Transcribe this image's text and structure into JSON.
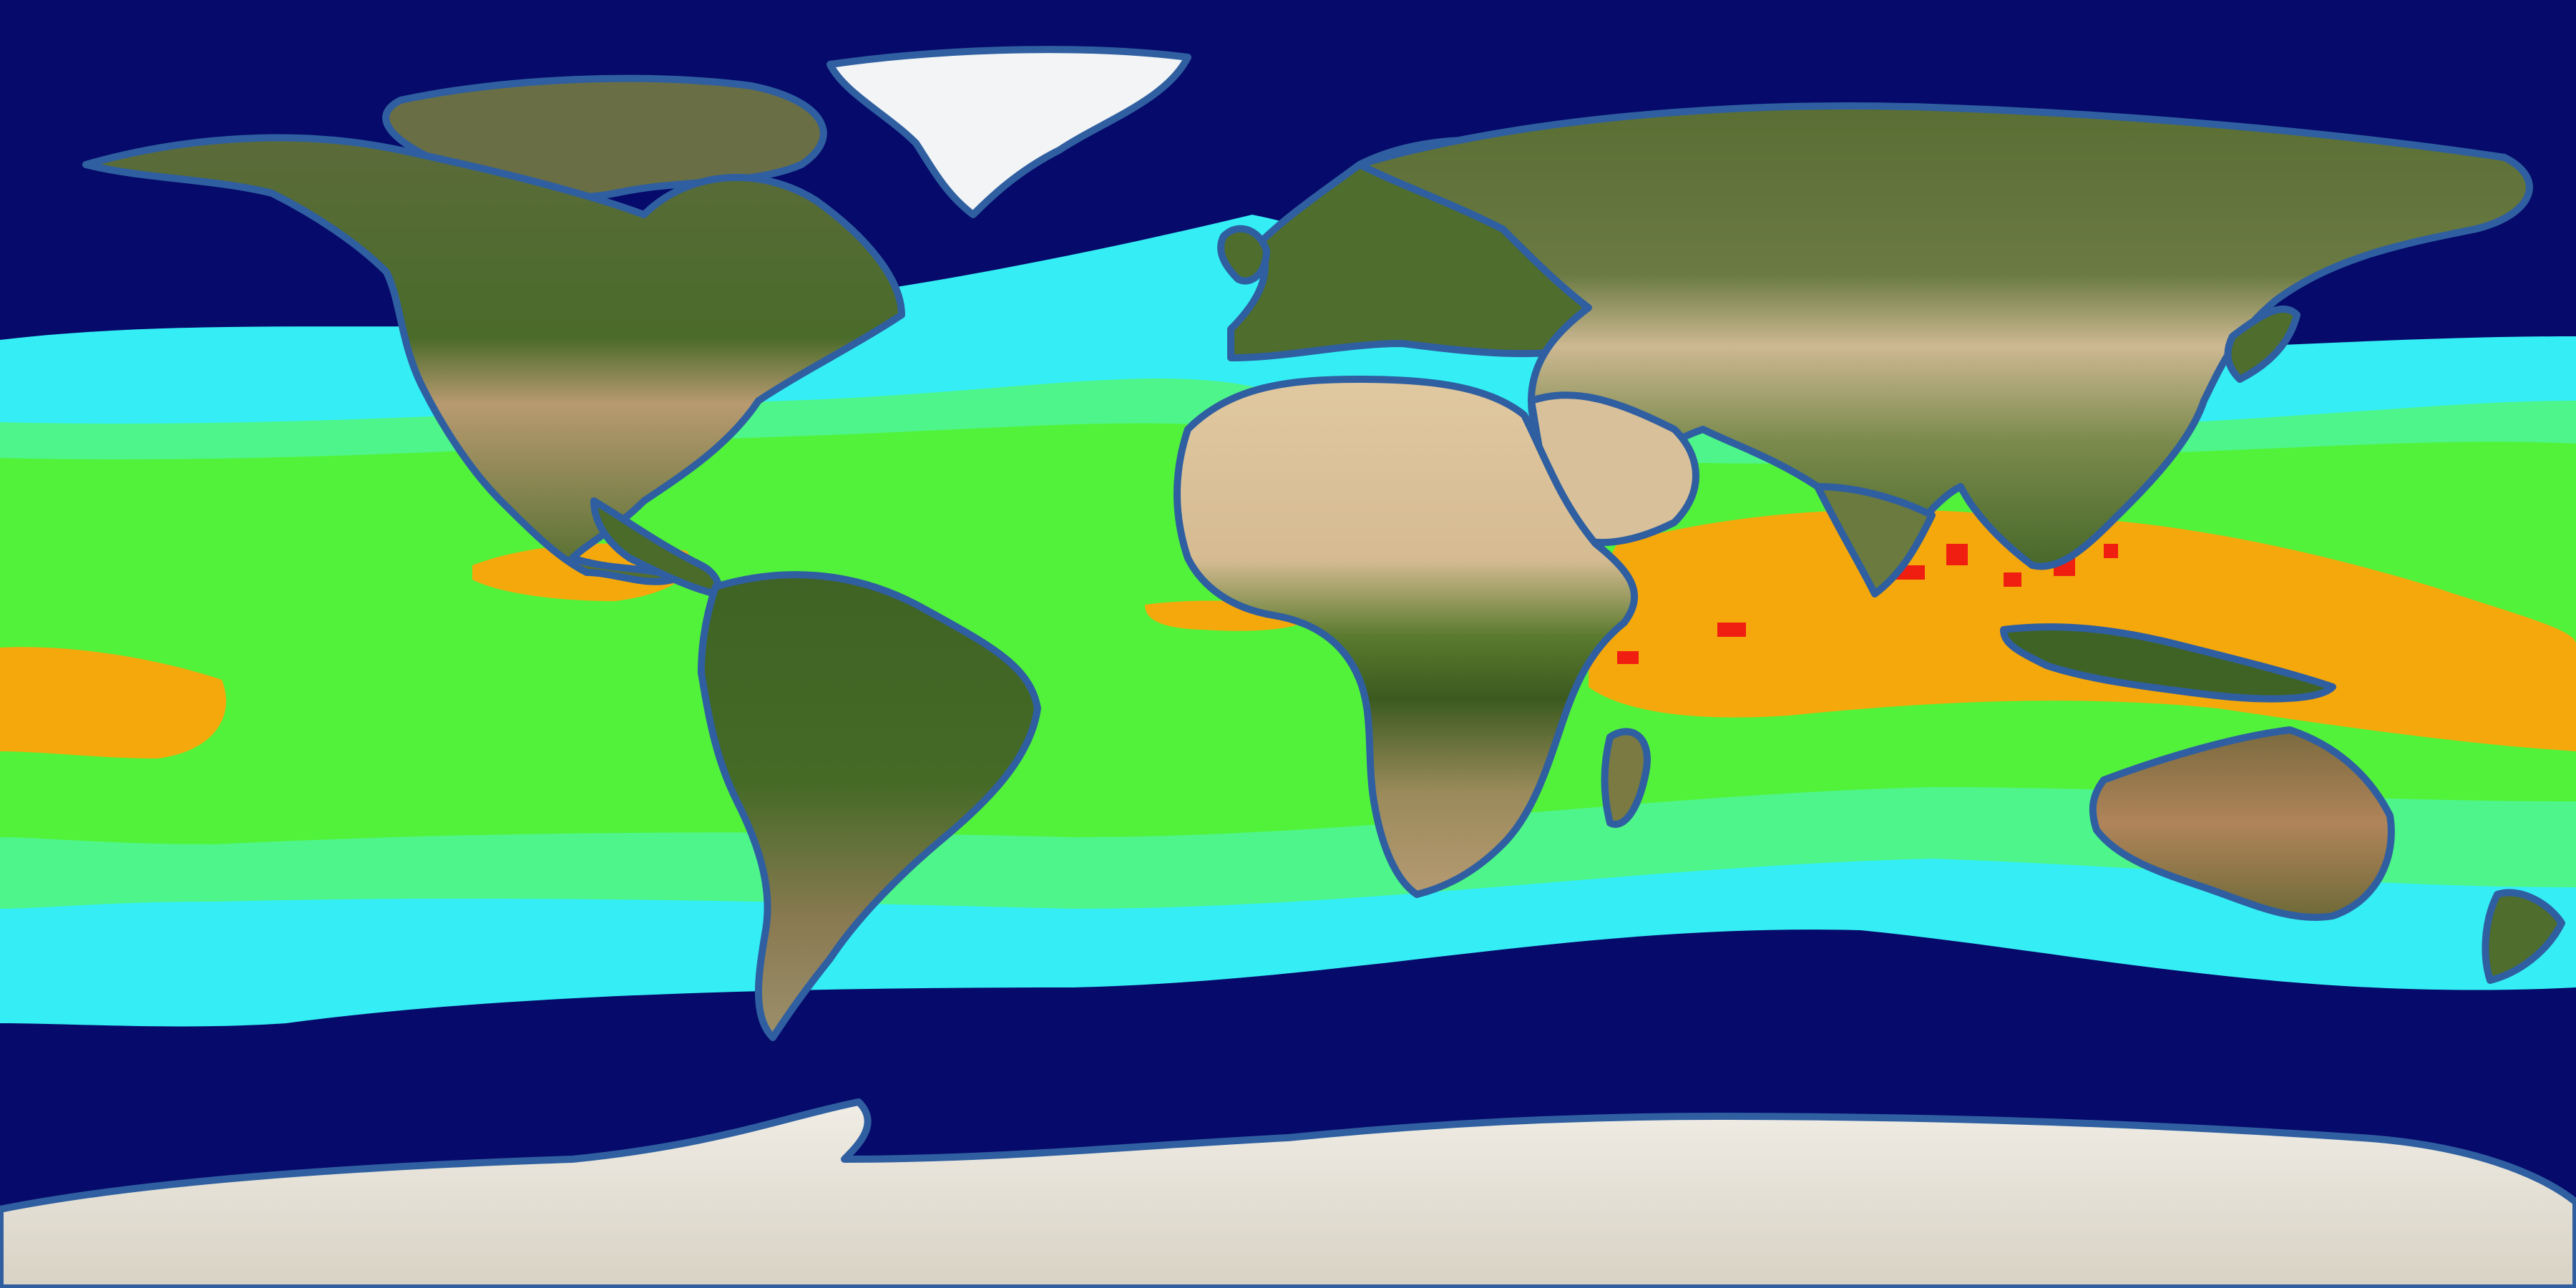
{
  "map": {
    "projection": "equirectangular",
    "theme": "sea surface temperature bands over satellite land imagery",
    "colors": {
      "ocean_cold": "#060a6b",
      "band_cool": "#35eef5",
      "band_mild": "#4ef58a",
      "band_warm": "#52f23b",
      "band_hot": "#f5a80c",
      "band_hottest": "#f01e10",
      "coast_outline": "#2f5fa0",
      "land_green": "#4a6b2a",
      "land_forest": "#3b5a1f",
      "land_desert": "#d8c09a",
      "land_arid": "#b89a70",
      "ice": "#f2f4f6",
      "antarctica": "#e8e6e0"
    },
    "temperature_bands": [
      {
        "name": "cold",
        "color_key": "ocean_cold"
      },
      {
        "name": "cool",
        "color_key": "band_cool"
      },
      {
        "name": "mild",
        "color_key": "band_mild"
      },
      {
        "name": "warm",
        "color_key": "band_warm"
      },
      {
        "name": "hot",
        "color_key": "band_hot"
      },
      {
        "name": "hottest",
        "color_key": "band_hottest"
      }
    ],
    "landmasses": [
      "north-america",
      "greenland",
      "south-america",
      "europe",
      "africa",
      "asia",
      "australia",
      "antarctica",
      "madagascar",
      "new-zealand",
      "japan",
      "indonesia",
      "arctic-islands",
      "uk"
    ]
  }
}
